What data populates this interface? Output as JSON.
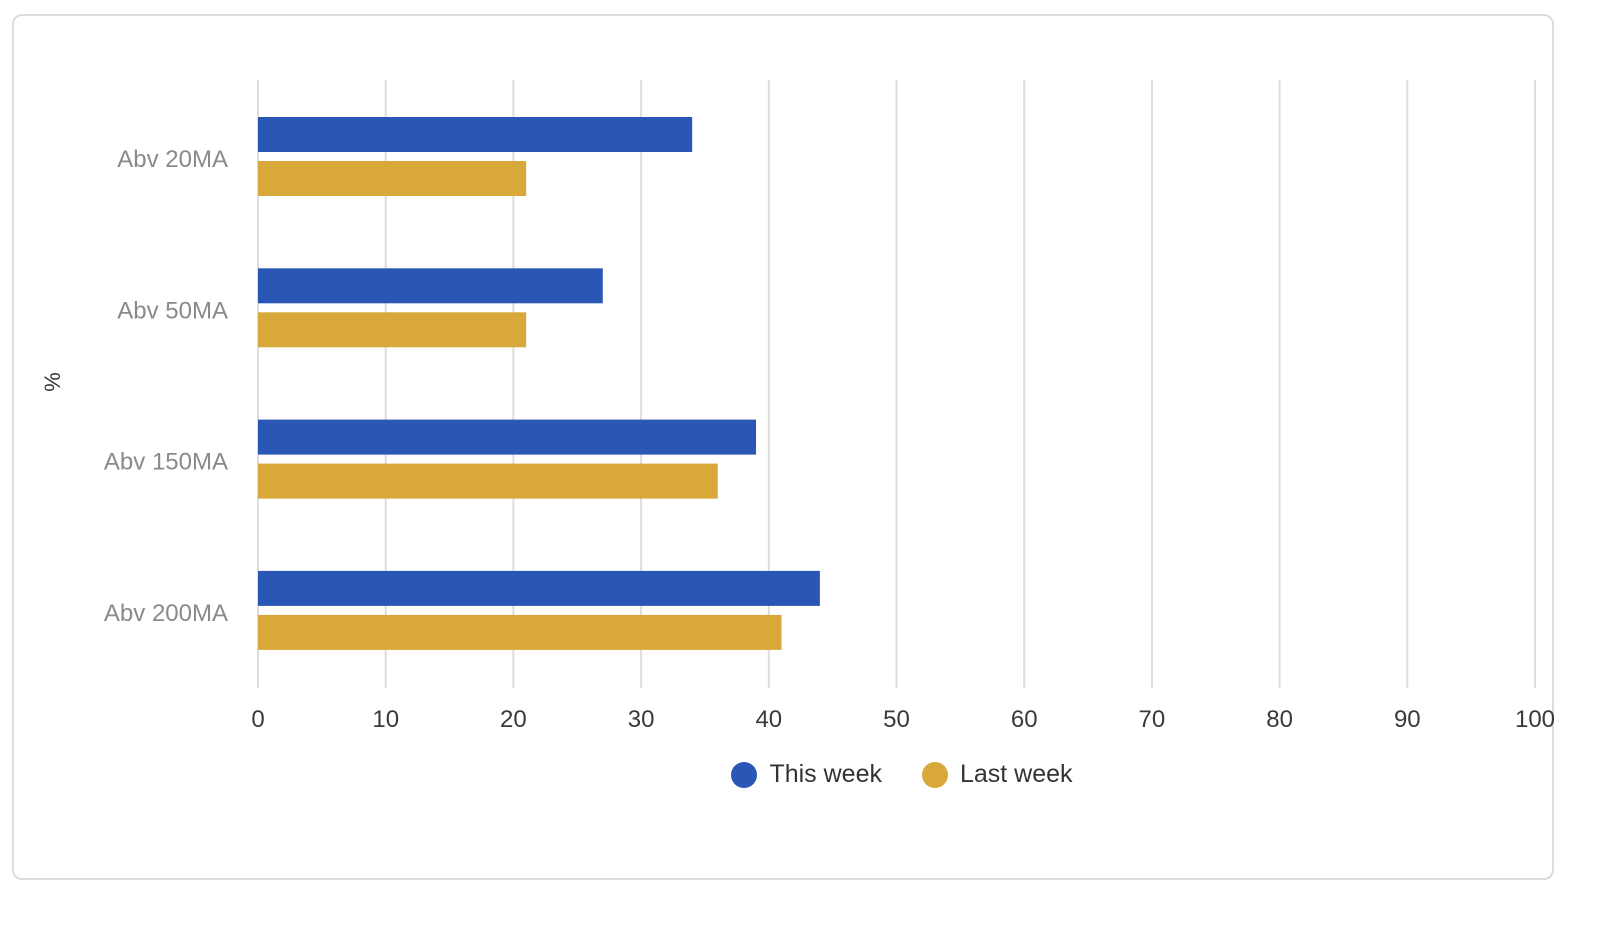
{
  "chart_data": {
    "type": "bar",
    "orientation": "horizontal",
    "categories": [
      "Abv 20MA",
      "Abv 50MA",
      "Abv 150MA",
      "Abv 200MA"
    ],
    "series": [
      {
        "name": "This week",
        "color": "#2a57b6",
        "values": [
          34,
          27,
          39,
          44
        ]
      },
      {
        "name": "Last week",
        "color": "#d9a83b",
        "values": [
          21,
          21,
          36,
          41
        ]
      }
    ],
    "xlim": [
      0,
      100
    ],
    "xticks": [
      "0",
      "10",
      "20",
      "30",
      "40",
      "50",
      "60",
      "70",
      "80",
      "90",
      "100"
    ],
    "ylabel": "%",
    "grid": true,
    "legend_position": "bottom-center"
  }
}
